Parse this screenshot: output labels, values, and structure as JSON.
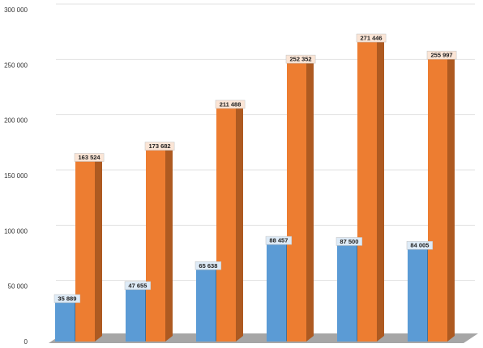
{
  "chart_data": {
    "type": "bar",
    "categories": [
      "",
      "",
      "",
      "",
      "",
      ""
    ],
    "series": [
      {
        "values": [
          35889,
          47655,
          65638,
          88457,
          87500,
          84005
        ]
      },
      {
        "values": [
          163524,
          173682,
          211488,
          252352,
          271446,
          255997
        ]
      }
    ],
    "ylim": [
      0,
      300000
    ],
    "yticks": [
      0,
      50000,
      100000,
      150000,
      200000,
      250000,
      300000
    ],
    "ytick_labels": [
      "0",
      "50 000",
      "100 000",
      "150 000",
      "200 000",
      "250 000",
      "300 000"
    ],
    "data_labels": [
      [
        "35 889",
        "47 655",
        "65 638",
        "88 457",
        "87 500",
        "84 005"
      ],
      [
        "163 524",
        "173 682",
        "211 488",
        "252 352",
        "271 446",
        "255 997"
      ]
    ],
    "grid": true,
    "legend": "none",
    "style": "3d-columns",
    "colors": {
      "series1": "#5b9bd5",
      "series1_side": "#41719c",
      "series1_top": "#8fbbe6",
      "series2": "#ed7d31",
      "series2_side": "#ae5a21",
      "series2_top": "#f4a875",
      "floor": "#a6a6a6",
      "grid": "#e3e3e3",
      "label_bg_series1": "#deebf7",
      "label_bg_series2": "#fbe5d6"
    }
  }
}
